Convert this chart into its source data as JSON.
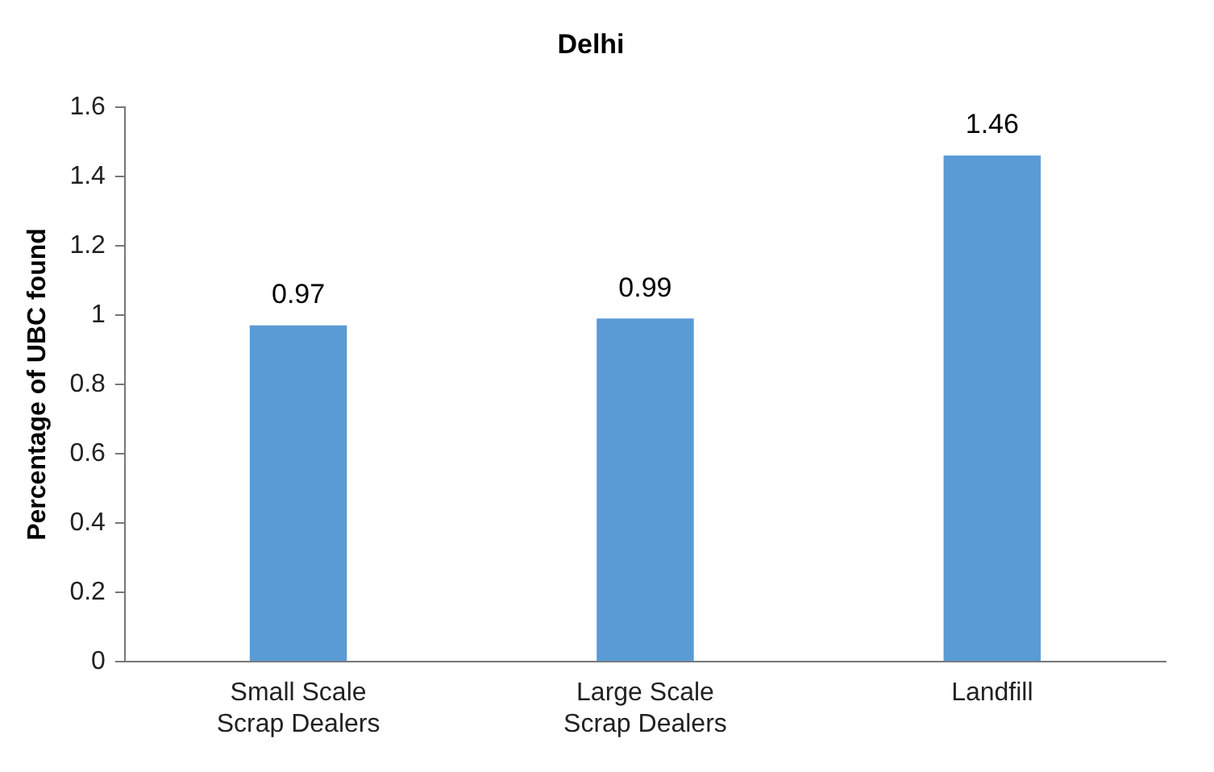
{
  "chart_data": {
    "type": "bar",
    "title": "Delhi",
    "ylabel": "Percentage of UBC found",
    "categories": [
      "Small Scale Scrap Dealers",
      "Large Scale Scrap Dealers",
      "Landfill"
    ],
    "values": [
      0.97,
      0.99,
      1.46
    ],
    "color": "#5b9bd5",
    "ylim": [
      0,
      1.6
    ],
    "yticks": [
      0,
      0.2,
      0.4,
      0.6,
      0.8,
      1,
      1.2,
      1.4,
      1.6
    ],
    "grid": false,
    "legend": false,
    "data_labels": true
  }
}
